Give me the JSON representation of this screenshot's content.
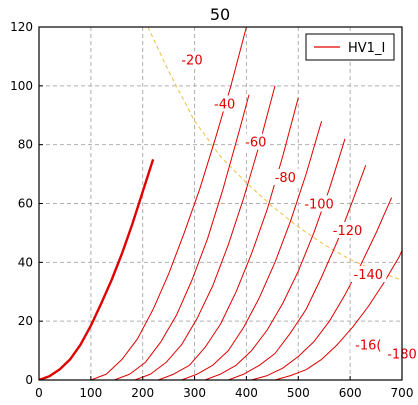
{
  "chart_data": {
    "type": "line",
    "title": "50",
    "xlabel": "",
    "ylabel": "",
    "xlim": [
      0,
      700
    ],
    "ylim": [
      0,
      120
    ],
    "xticks": [
      "0",
      "100",
      "200",
      "300",
      "400",
      "500",
      "600",
      "700"
    ],
    "yticks": [
      "0",
      "20",
      "40",
      "60",
      "80",
      "100",
      "120"
    ],
    "grid": true,
    "legend": {
      "position": "top-right",
      "entries": [
        "HV1_I"
      ]
    },
    "colors": {
      "curve": "#e00000",
      "load_line": "#f0c040",
      "grid": "#b0b0b0"
    },
    "series": [
      {
        "label": "",
        "bold": true,
        "points": [
          [
            0,
            0
          ],
          [
            20,
            1.3
          ],
          [
            40,
            3.6
          ],
          [
            60,
            7
          ],
          [
            80,
            12
          ],
          [
            100,
            18.5
          ],
          [
            120,
            26
          ],
          [
            140,
            34
          ],
          [
            160,
            43
          ],
          [
            180,
            53
          ],
          [
            200,
            64
          ],
          [
            220,
            75
          ]
        ]
      },
      {
        "label": "-20",
        "points": [
          [
            100,
            0
          ],
          [
            130,
            2
          ],
          [
            160,
            7
          ],
          [
            190,
            14
          ],
          [
            220,
            24
          ],
          [
            250,
            36
          ],
          [
            280,
            50
          ],
          [
            310,
            65
          ],
          [
            340,
            82
          ],
          [
            370,
            100
          ],
          [
            400,
            120
          ]
        ]
      },
      {
        "label": "-40",
        "points": [
          [
            145,
            0
          ],
          [
            175,
            2
          ],
          [
            205,
            6
          ],
          [
            235,
            13
          ],
          [
            265,
            22
          ],
          [
            295,
            34
          ],
          [
            325,
            48
          ],
          [
            355,
            65
          ],
          [
            385,
            84
          ],
          [
            405,
            97
          ]
        ]
      },
      {
        "label": "-60",
        "points": [
          [
            185,
            0
          ],
          [
            215,
            2
          ],
          [
            245,
            6
          ],
          [
            275,
            12
          ],
          [
            305,
            21
          ],
          [
            335,
            32
          ],
          [
            365,
            46
          ],
          [
            395,
            62
          ],
          [
            425,
            80
          ],
          [
            455,
            100
          ]
        ]
      },
      {
        "label": "-80",
        "points": [
          [
            230,
            0
          ],
          [
            260,
            2
          ],
          [
            290,
            5
          ],
          [
            320,
            11
          ],
          [
            350,
            19
          ],
          [
            380,
            30
          ],
          [
            410,
            43
          ],
          [
            440,
            58
          ],
          [
            470,
            76
          ],
          [
            500,
            96
          ]
        ]
      },
      {
        "label": "-100",
        "points": [
          [
            275,
            0
          ],
          [
            305,
            2
          ],
          [
            335,
            5
          ],
          [
            365,
            10
          ],
          [
            395,
            18
          ],
          [
            425,
            28
          ],
          [
            455,
            40
          ],
          [
            485,
            54
          ],
          [
            515,
            70
          ],
          [
            545,
            88
          ]
        ]
      },
      {
        "label": "-120",
        "points": [
          [
            320,
            0
          ],
          [
            350,
            2
          ],
          [
            380,
            5
          ],
          [
            410,
            10
          ],
          [
            440,
            17
          ],
          [
            470,
            26
          ],
          [
            500,
            37
          ],
          [
            530,
            50
          ],
          [
            560,
            65
          ],
          [
            590,
            82
          ]
        ]
      },
      {
        "label": "-140",
        "points": [
          [
            365,
            0
          ],
          [
            395,
            2
          ],
          [
            425,
            5
          ],
          [
            455,
            9
          ],
          [
            485,
            16
          ],
          [
            515,
            24
          ],
          [
            545,
            35
          ],
          [
            575,
            47
          ],
          [
            605,
            61
          ],
          [
            630,
            73
          ]
        ]
      },
      {
        "label": "-160",
        "points": [
          [
            410,
            0
          ],
          [
            440,
            1.5
          ],
          [
            470,
            4
          ],
          [
            500,
            8
          ],
          [
            530,
            13
          ],
          [
            560,
            20
          ],
          [
            590,
            29
          ],
          [
            620,
            39
          ],
          [
            650,
            50
          ],
          [
            680,
            62
          ]
        ]
      },
      {
        "label": "-180",
        "points": [
          [
            455,
            0
          ],
          [
            485,
            1.5
          ],
          [
            515,
            3.5
          ],
          [
            545,
            7
          ],
          [
            575,
            12
          ],
          [
            605,
            18
          ],
          [
            635,
            25
          ],
          [
            665,
            33
          ],
          [
            695,
            42
          ],
          [
            700,
            44
          ]
        ]
      }
    ],
    "load_line": [
      [
        210,
        120
      ],
      [
        250,
        105
      ],
      [
        300,
        88
      ],
      [
        350,
        76
      ],
      [
        400,
        67
      ],
      [
        450,
        59
      ],
      [
        500,
        52
      ],
      [
        550,
        46
      ],
      [
        600,
        41
      ],
      [
        650,
        37
      ],
      [
        700,
        34
      ]
    ],
    "curve_labels": [
      {
        "text": "-20",
        "x": 295,
        "y": 108
      },
      {
        "text": "-40",
        "x": 358,
        "y": 93
      },
      {
        "text": "-60",
        "x": 418,
        "y": 80
      },
      {
        "text": "-80",
        "x": 475,
        "y": 68
      },
      {
        "text": "-100",
        "x": 540,
        "y": 59
      },
      {
        "text": "-120",
        "x": 595,
        "y": 50
      },
      {
        "text": "-140",
        "x": 635,
        "y": 35
      },
      {
        "text": "-16(",
        "x": 635,
        "y": 11
      },
      {
        "text": "-180",
        "x": 700,
        "y": 8
      }
    ]
  }
}
